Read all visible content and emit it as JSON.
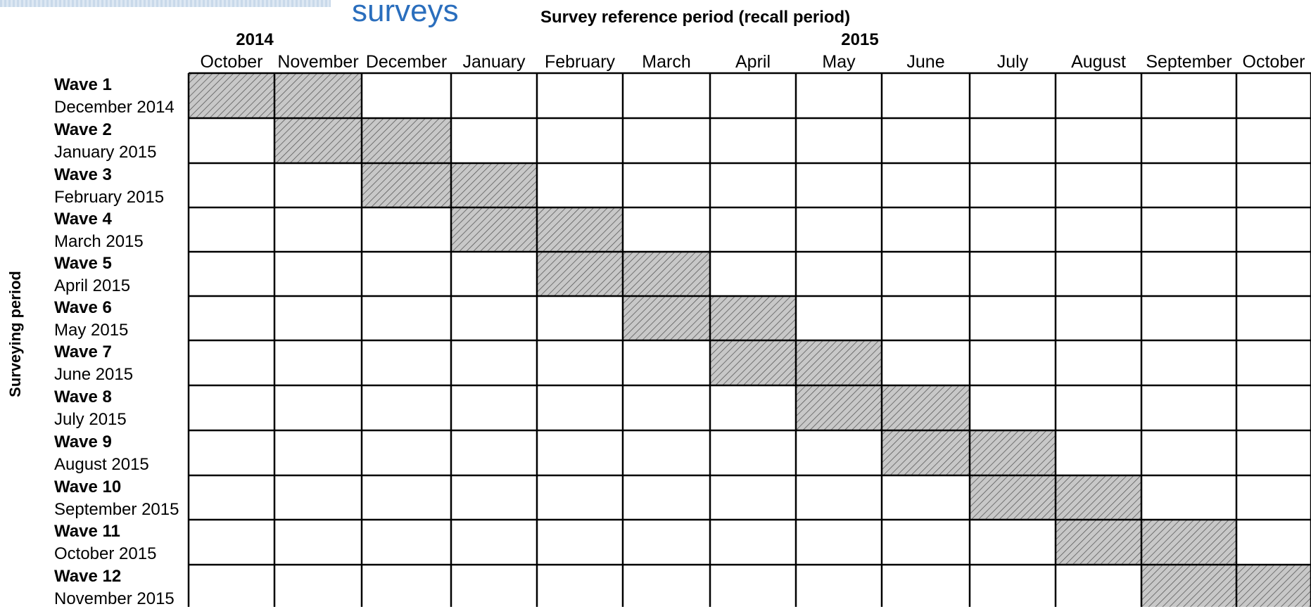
{
  "title": "surveys",
  "subtitle": "Survey reference period (recall period)",
  "years": [
    "2014",
    "2015"
  ],
  "months": [
    "October",
    "November",
    "December",
    "January",
    "February",
    "March",
    "April",
    "May",
    "June",
    "July",
    "August",
    "September",
    "October"
  ],
  "y_axis_label": "Surveying period",
  "waves": [
    {
      "title": "Wave 1",
      "date": "December 2014",
      "shaded_months": [
        0,
        1
      ]
    },
    {
      "title": "Wave 2",
      "date": "January 2015",
      "shaded_months": [
        1,
        2
      ]
    },
    {
      "title": "Wave 3",
      "date": "February 2015",
      "shaded_months": [
        2,
        3
      ]
    },
    {
      "title": "Wave 4",
      "date": "March 2015",
      "shaded_months": [
        3,
        4
      ]
    },
    {
      "title": "Wave 5",
      "date": "April 2015",
      "shaded_months": [
        4,
        5
      ]
    },
    {
      "title": "Wave 6",
      "date": "May 2015",
      "shaded_months": [
        5,
        6
      ]
    },
    {
      "title": "Wave 7",
      "date": "June 2015",
      "shaded_months": [
        6,
        7
      ]
    },
    {
      "title": "Wave 8",
      "date": "July 2015",
      "shaded_months": [
        7,
        8
      ]
    },
    {
      "title": "Wave 9",
      "date": "August 2015",
      "shaded_months": [
        8,
        9
      ]
    },
    {
      "title": "Wave 10",
      "date": "September 2015",
      "shaded_months": [
        9,
        10
      ]
    },
    {
      "title": "Wave 11",
      "date": "October 2015",
      "shaded_months": [
        10,
        11
      ]
    },
    {
      "title": "Wave 12",
      "date": "November 2015",
      "shaded_months": [
        11,
        12
      ]
    }
  ],
  "colors": {
    "title": "#2a6ebd",
    "hatch_fill": "#c8c8c8",
    "hatch_line": "#555555",
    "grid_line": "#000000"
  }
}
